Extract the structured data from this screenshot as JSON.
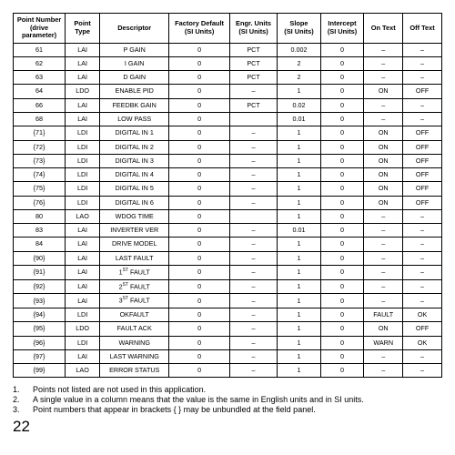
{
  "headers": [
    "Point Number (drive parameter)",
    "Point Type",
    "Descriptor",
    "Factory Default (SI Units)",
    "Engr. Units (SI Units)",
    "Slope (SI Units)",
    "Intercept (SI Units)",
    "On Text",
    "Off Text"
  ],
  "rows": [
    [
      "61",
      "LAI",
      "P GAIN",
      "0",
      "PCT",
      "0.002",
      "0",
      "–",
      "–"
    ],
    [
      "62",
      "LAI",
      "I GAIN",
      "0",
      "PCT",
      "2",
      "0",
      "–",
      "–"
    ],
    [
      "63",
      "LAI",
      "D GAIN",
      "0",
      "PCT",
      "2",
      "0",
      "–",
      "–"
    ],
    [
      "64",
      "LDO",
      "ENABLE PID",
      "0",
      "–",
      "1",
      "0",
      "ON",
      "OFF"
    ],
    [
      "66",
      "LAI",
      "FEEDBK GAIN",
      "0",
      "PCT",
      "0.02",
      "0",
      "–",
      "–"
    ],
    [
      "68",
      "LAI",
      "LOW PASS",
      "0",
      "",
      "0.01",
      "0",
      "–",
      "–"
    ],
    [
      "{71}",
      "LDI",
      "DIGITAL IN 1",
      "0",
      "–",
      "1",
      "0",
      "ON",
      "OFF"
    ],
    [
      "{72}",
      "LDI",
      "DIGITAL IN 2",
      "0",
      "–",
      "1",
      "0",
      "ON",
      "OFF"
    ],
    [
      "{73}",
      "LDI",
      "DIGITAL IN 3",
      "0",
      "–",
      "1",
      "0",
      "ON",
      "OFF"
    ],
    [
      "{74}",
      "LDI",
      "DIGITAL IN 4",
      "0",
      "–",
      "1",
      "0",
      "ON",
      "OFF"
    ],
    [
      "{75}",
      "LDI",
      "DIGITAL IN 5",
      "0",
      "–",
      "1",
      "0",
      "ON",
      "OFF"
    ],
    [
      "{76}",
      "LDI",
      "DIGITAL IN 6",
      "0",
      "–",
      "1",
      "0",
      "ON",
      "OFF"
    ],
    [
      "80",
      "LAO",
      "WDOG TIME",
      "0",
      "",
      "1",
      "0",
      "–",
      "–"
    ],
    [
      "83",
      "LAI",
      "INVERTER VER",
      "0",
      "–",
      "0.01",
      "0",
      "–",
      "–"
    ],
    [
      "84",
      "LAI",
      "DRIVE MODEL",
      "0",
      "–",
      "1",
      "0",
      "–",
      "–"
    ],
    [
      "{90}",
      "LAI",
      "LAST FAULT",
      "0",
      "–",
      "1",
      "0",
      "–",
      "–"
    ],
    [
      "{91}",
      "LAI",
      "1ST FAULT",
      "0",
      "–",
      "1",
      "0",
      "–",
      "–"
    ],
    [
      "{92}",
      "LAI",
      "2ST FAULT",
      "0",
      "–",
      "1",
      "0",
      "–",
      "–"
    ],
    [
      "{93}",
      "LAI",
      "3ST FAULT",
      "0",
      "–",
      "1",
      "0",
      "–",
      "–"
    ],
    [
      "{94}",
      "LDI",
      "OKFAULT",
      "0",
      "–",
      "1",
      "0",
      "FAULT",
      "OK"
    ],
    [
      "{95}",
      "LDO",
      "FAULT ACK",
      "0",
      "–",
      "1",
      "0",
      "ON",
      "OFF"
    ],
    [
      "{96}",
      "LDI",
      "WARNING",
      "0",
      "–",
      "1",
      "0",
      "WARN",
      "OK"
    ],
    [
      "{97}",
      "LAI",
      "LAST WARNING",
      "0",
      "–",
      "1",
      "0",
      "–",
      "–"
    ],
    [
      "{99}",
      "LAO",
      "ERROR STATUS",
      "0",
      "–",
      "1",
      "0",
      "–",
      "–"
    ]
  ],
  "notes": [
    {
      "n": "1.",
      "t": "Points not listed are not used in this application."
    },
    {
      "n": "2.",
      "t": "A single value in a column means that the value is the same in English units and in SI units."
    },
    {
      "n": "3.",
      "t": "Point numbers that appear in brackets { } may be unbundled at the field panel."
    }
  ],
  "page": "22"
}
